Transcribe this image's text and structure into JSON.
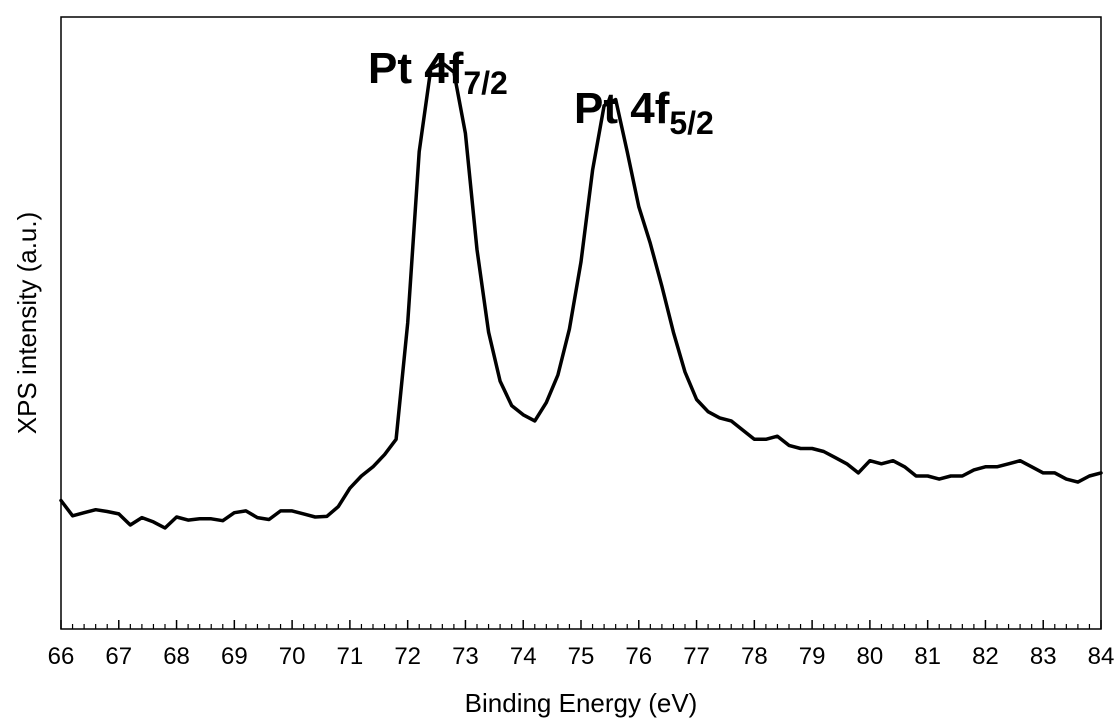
{
  "chart_data": {
    "type": "line",
    "xlabel": "Binding Energy (eV)",
    "ylabel": "XPS intensity (a.u.)",
    "xlim": [
      66,
      84
    ],
    "ylim": [
      0,
      100
    ],
    "x_ticks": [
      66,
      67,
      68,
      69,
      70,
      71,
      72,
      73,
      74,
      75,
      76,
      77,
      78,
      79,
      80,
      81,
      82,
      83,
      84
    ],
    "y_ticks_shown": false,
    "grid": false,
    "legend": "none",
    "annotations": [
      {
        "text": "Pt 4f",
        "subscript": "7/2",
        "x": 72.9
      },
      {
        "text": "Pt 4f",
        "subscript": "5/2",
        "x": 76.1
      }
    ],
    "series": [
      {
        "x": [
          66.0,
          66.2,
          66.4,
          66.6,
          66.8,
          67.0,
          67.2,
          67.4,
          67.6,
          67.8,
          68.0,
          68.2,
          68.4,
          68.6,
          68.8,
          69.0,
          69.2,
          69.4,
          69.6,
          69.8,
          70.0,
          70.2,
          70.4,
          70.6,
          70.8,
          71.0,
          71.2,
          71.4,
          71.6,
          71.8,
          72.0,
          72.2,
          72.4,
          72.6,
          72.8,
          73.0,
          73.2,
          73.4,
          73.6,
          73.8,
          74.0,
          74.2,
          74.4,
          74.6,
          74.8,
          75.0,
          75.2,
          75.4,
          75.6,
          75.8,
          76.0,
          76.2,
          76.4,
          76.6,
          76.8,
          77.0,
          77.2,
          77.4,
          77.6,
          77.8,
          78.0,
          78.2,
          78.4,
          78.6,
          78.8,
          79.0,
          79.2,
          79.4,
          79.6,
          79.8,
          80.0,
          80.2,
          80.4,
          80.6,
          80.8,
          81.0,
          81.2,
          81.4,
          81.6,
          81.8,
          82.0,
          82.2,
          82.4,
          82.6,
          82.8,
          83.0,
          83.2,
          83.4,
          83.6,
          83.8,
          84.0
        ],
        "values": [
          21.0,
          18.5,
          19.0,
          19.5,
          19.2,
          18.8,
          17.0,
          18.2,
          17.5,
          16.5,
          18.3,
          17.8,
          18.0,
          18.0,
          17.7,
          19.0,
          19.3,
          18.2,
          17.9,
          19.3,
          19.3,
          18.8,
          18.3,
          18.4,
          20.0,
          23.0,
          25.0,
          26.5,
          28.5,
          31.0,
          50.0,
          78.0,
          91.5,
          92.5,
          91.0,
          81.0,
          62.0,
          48.5,
          40.5,
          36.5,
          35.0,
          34.0,
          37.0,
          41.5,
          49.0,
          60.0,
          75.0,
          85.5,
          86.5,
          78.0,
          69.0,
          63.0,
          56.0,
          48.5,
          42.0,
          37.5,
          35.5,
          34.5,
          34.0,
          32.5,
          31.0,
          31.0,
          31.5,
          30.0,
          29.5,
          29.5,
          29.0,
          28.0,
          27.0,
          25.5,
          27.5,
          27.0,
          27.5,
          26.5,
          25.0,
          25.0,
          24.5,
          25.0,
          25.0,
          26.0,
          26.5,
          26.5,
          27.0,
          27.5,
          26.5,
          25.5,
          25.5,
          24.5,
          24.0,
          25.0,
          25.5
        ]
      }
    ]
  }
}
